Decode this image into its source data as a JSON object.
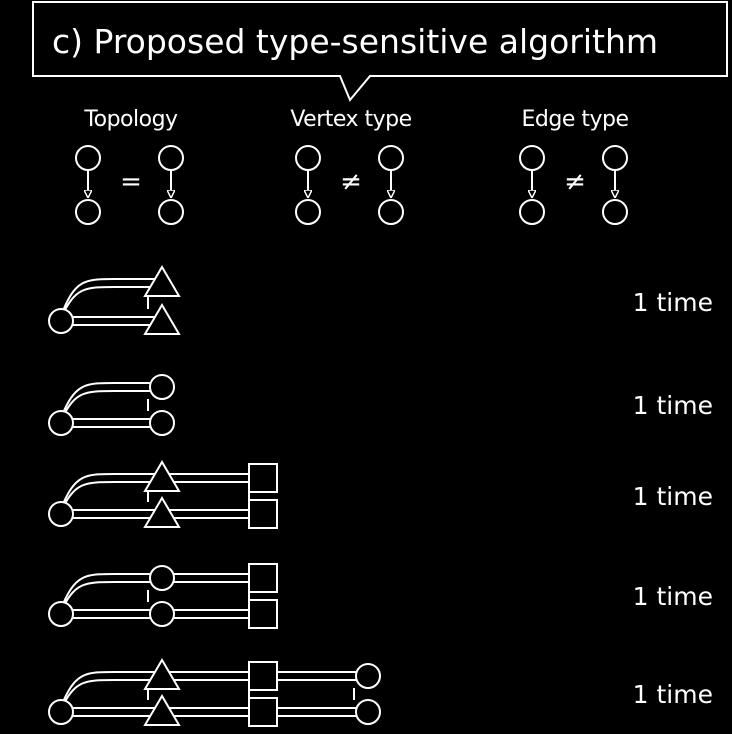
{
  "title": "c)  Proposed type-sensitive algorithm",
  "criteria": [
    {
      "label": "Topology",
      "relation": "="
    },
    {
      "label": "Vertex type",
      "relation": "≠"
    },
    {
      "label": "Edge type",
      "relation": "≠"
    }
  ],
  "patterns": [
    {
      "shapes": [
        "circle",
        "triangle"
      ],
      "count": "1 time"
    },
    {
      "shapes": [
        "circle",
        "circle"
      ],
      "count": "1 time"
    },
    {
      "shapes": [
        "circle",
        "triangle",
        "square"
      ],
      "count": "1 time"
    },
    {
      "shapes": [
        "circle",
        "circle",
        "square"
      ],
      "count": "1 time"
    },
    {
      "shapes": [
        "circle",
        "triangle",
        "square",
        "circle"
      ],
      "count": "1 time"
    }
  ],
  "colors": {
    "background": "#000000",
    "stroke": "#ffffff"
  }
}
